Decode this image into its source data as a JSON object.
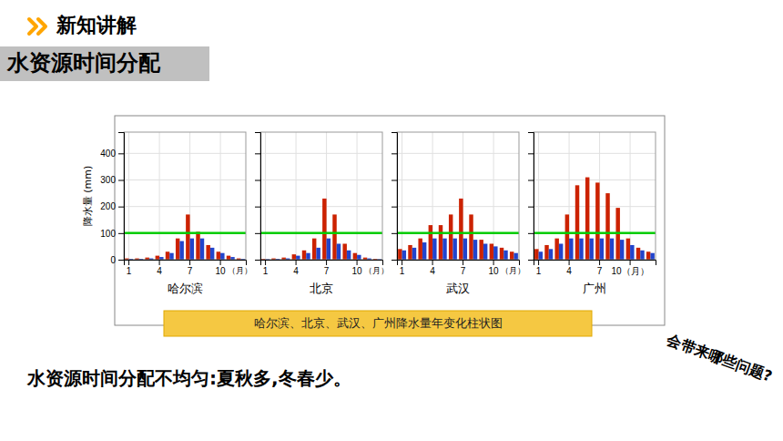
{
  "header": "新知讲解",
  "section_title": "水资源时间分配",
  "caption": "哈尔滨、北京、武汉、广州降水量年变化柱状图",
  "bottom_text": "水资源时间分配不均匀:夏秋多,冬春少。",
  "right_text": "会带来哪些问题?",
  "chart_data": [
    {
      "type": "bar",
      "xlabel": "哈尔滨",
      "ylabel": "降水量 (mm)",
      "categories": [
        "1",
        null,
        null,
        "4",
        null,
        null,
        "7",
        null,
        null,
        "10",
        null,
        null
      ],
      "series": [
        {
          "color": "#cc2200",
          "values": [
            5,
            5,
            8,
            15,
            30,
            80,
            170,
            105,
            55,
            30,
            15,
            5
          ]
        },
        {
          "color": "#2244cc",
          "values": [
            3,
            3,
            5,
            10,
            25,
            70,
            80,
            80,
            45,
            25,
            10,
            3
          ]
        }
      ],
      "reference_line": {
        "value": 100,
        "color": "#00cc00"
      },
      "annotations": [
        "（月）"
      ],
      "ylim": [
        0,
        480
      ],
      "yticks": [
        0,
        100,
        200,
        300,
        400
      ],
      "grid": true
    },
    {
      "type": "bar",
      "xlabel": "北京",
      "categories": [
        "1",
        null,
        null,
        "4",
        null,
        null,
        "7",
        null,
        null,
        "10",
        null,
        null
      ],
      "series": [
        {
          "color": "#cc2200",
          "values": [
            3,
            5,
            8,
            20,
            35,
            80,
            230,
            170,
            60,
            25,
            8,
            3
          ]
        },
        {
          "color": "#2244cc",
          "values": [
            2,
            3,
            5,
            15,
            25,
            45,
            80,
            60,
            35,
            18,
            5,
            2
          ]
        }
      ],
      "reference_line": {
        "value": 100,
        "color": "#00cc00"
      },
      "annotations": [
        "（月）"
      ],
      "ylim": [
        0,
        480
      ],
      "yticks": [
        0,
        100,
        200,
        300,
        400
      ],
      "grid": true,
      "tick_labels": "x"
    },
    {
      "type": "bar",
      "xlabel": "武汉",
      "categories": [
        "1",
        null,
        null,
        "4",
        null,
        null,
        "7",
        null,
        null,
        "10",
        null,
        null
      ],
      "series": [
        {
          "color": "#cc2200",
          "values": [
            40,
            55,
            80,
            130,
            130,
            170,
            230,
            170,
            75,
            60,
            45,
            30
          ]
        },
        {
          "color": "#2244cc",
          "values": [
            35,
            45,
            65,
            80,
            80,
            80,
            80,
            75,
            60,
            50,
            35,
            25
          ]
        }
      ],
      "reference_line": {
        "value": 100,
        "color": "#00cc00"
      },
      "annotations": [
        "（月）"
      ],
      "ylim": [
        0,
        480
      ],
      "yticks": [
        0,
        100,
        200,
        300,
        400
      ],
      "grid": true,
      "tick_labels": "x"
    },
    {
      "type": "bar",
      "xlabel": "广州",
      "categories": [
        "1",
        null,
        null,
        "4",
        null,
        null,
        "7",
        null,
        null,
        "10（月）",
        null,
        null
      ],
      "series": [
        {
          "color": "#cc2200",
          "values": [
            40,
            55,
            80,
            170,
            280,
            310,
            290,
            250,
            195,
            80,
            45,
            30
          ]
        },
        {
          "color": "#2244cc",
          "values": [
            30,
            40,
            60,
            80,
            80,
            80,
            80,
            80,
            75,
            55,
            35,
            25
          ]
        }
      ],
      "reference_line": {
        "value": 100,
        "color": "#00cc00"
      },
      "ylim": [
        0,
        480
      ],
      "yticks": [
        0,
        100,
        200,
        300,
        400
      ],
      "grid": true,
      "tick_labels": "x"
    }
  ]
}
